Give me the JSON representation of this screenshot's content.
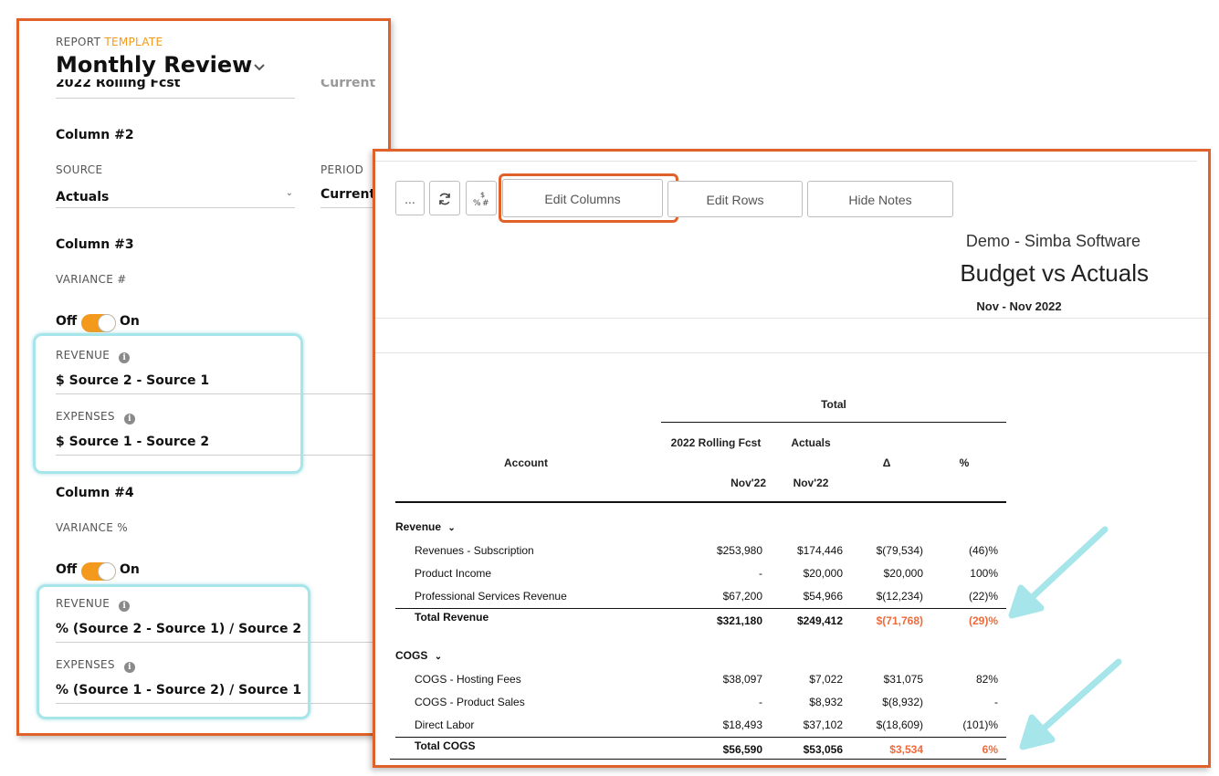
{
  "template": {
    "label_prefix": "REPORT",
    "label_accent": "TEMPLATE",
    "title": "Monthly Review",
    "partial_prev_source": "2022 Rolling Fcst",
    "partial_prev_period": "Current"
  },
  "column2": {
    "heading": "Column #2",
    "source_label": "SOURCE",
    "source_value": "Actuals",
    "period_label": "PERIOD",
    "period_value": "Current"
  },
  "column3": {
    "heading": "Column #3",
    "type_label": "VARIANCE #",
    "toggle_off": "Off",
    "toggle_on": "On",
    "revenue_label": "REVENUE",
    "revenue_value": "$ Source 2 - Source 1",
    "expenses_label": "EXPENSES",
    "expenses_value": "$ Source 1 - Source 2"
  },
  "column4": {
    "heading": "Column #4",
    "type_label": "VARIANCE %",
    "toggle_off": "Off",
    "toggle_on": "On",
    "revenue_label": "REVENUE",
    "revenue_value": "% (Source 2 - Source 1) / Source 2",
    "expenses_label": "EXPENSES",
    "expenses_value": "% (Source 1 - Source 2) / Source 1"
  },
  "toolbar": {
    "more_label": "...",
    "edit_columns": "Edit Columns",
    "edit_rows": "Edit Rows",
    "hide_notes": "Hide Notes"
  },
  "report": {
    "company": "Demo - Simba Software",
    "title": "Budget vs Actuals",
    "period": "Nov - Nov 2022"
  },
  "table": {
    "group_header": "Total",
    "account_header": "Account",
    "col1_name": "2022 Rolling Fcst",
    "col1_period": "Nov'22",
    "col2_name": "Actuals",
    "col2_period": "Nov'22",
    "col3_name": "Δ",
    "col4_name": "%",
    "sections": [
      {
        "name": "Revenue",
        "rows": [
          {
            "account": "Revenues - Subscription",
            "fcst": "$253,980",
            "actual": "$174,446",
            "delta": "$(79,534)",
            "pct": "(46)%"
          },
          {
            "account": "Product Income",
            "fcst": "-",
            "actual": "$20,000",
            "delta": "$20,000",
            "pct": "100%"
          },
          {
            "account": "Professional Services Revenue",
            "fcst": "$67,200",
            "actual": "$54,966",
            "delta": "$(12,234)",
            "pct": "(22)%"
          }
        ],
        "total": {
          "account": "Total Revenue",
          "fcst": "$321,180",
          "actual": "$249,412",
          "delta": "$(71,768)",
          "pct": "(29)%"
        }
      },
      {
        "name": "COGS",
        "rows": [
          {
            "account": "COGS - Hosting Fees",
            "fcst": "$38,097",
            "actual": "$7,022",
            "delta": "$31,075",
            "pct": "82%"
          },
          {
            "account": "COGS - Product Sales",
            "fcst": "-",
            "actual": "$8,932",
            "delta": "$(8,932)",
            "pct": "-"
          },
          {
            "account": "Direct Labor",
            "fcst": "$18,493",
            "actual": "$37,102",
            "delta": "$(18,609)",
            "pct": "(101)%"
          }
        ],
        "total": {
          "account": "Total COGS",
          "fcst": "$56,590",
          "actual": "$53,056",
          "delta": "$3,534",
          "pct": "6%"
        }
      }
    ]
  },
  "colors": {
    "callout_orange": "#e0622a",
    "callout_cyan": "#a6e6ea",
    "accent_orange": "#f39a1c",
    "negative_total": "#ee6a3a"
  },
  "icons": [
    "chevron-down-icon",
    "info-icon",
    "refresh-icon",
    "currency-percent-icon",
    "arrow-annotation-icon"
  ]
}
